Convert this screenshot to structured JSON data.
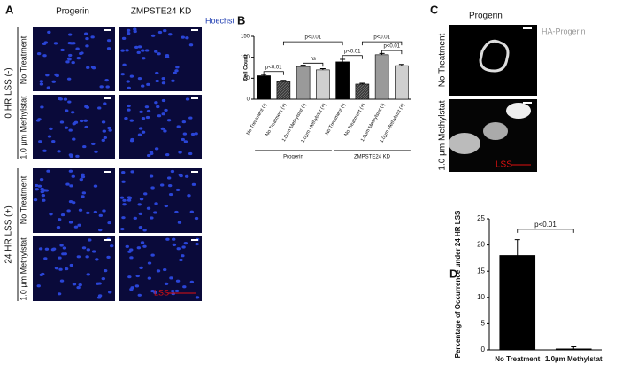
{
  "panels": {
    "A": {
      "label": "A",
      "columns": [
        "Progerin",
        "ZMPSTE24 KD"
      ],
      "stain": "Hoechst",
      "groups": [
        "0 HR LSS (-)",
        "24 HR LSS (+)"
      ],
      "rows": [
        "No Treatment",
        "1.0 µm Methylstat",
        "No Treatment",
        "1.0 µm Methylstat"
      ],
      "arrow": "LSS"
    },
    "C": {
      "label": "C",
      "column": "Progerin",
      "stain": "HA-Progerin",
      "rows": [
        "No Treatment",
        "1.0 µm Methylstat"
      ],
      "arrow": "LSS"
    }
  },
  "chart_data": [
    {
      "type": "bar",
      "label": "B",
      "ylabel": "Cell Count",
      "categories": [
        "No Treatment (-)",
        "No Treatment (+)",
        "1.0µm Methylstat (-)",
        "1.0µm Methylstat (+)",
        "No Treatment (-)",
        "No Treatment (+)",
        "1.0µm Methylstat (-)",
        "1.0µm Methylstat (+)"
      ],
      "values": [
        56,
        42,
        78,
        70,
        89,
        36,
        106,
        80
      ],
      "errors": [
        3,
        3,
        3,
        3,
        6,
        2,
        3,
        3
      ],
      "colors": [
        "#000000",
        "#3a3a3a",
        "#9a9a9a",
        "#cfcfcf",
        "#000000",
        "#3a3a3a",
        "#9a9a9a",
        "#cfcfcf"
      ],
      "groups": [
        "Progerin",
        "ZMPSTE24 KD"
      ],
      "annotations": [
        "p<0.01",
        "ns",
        "p<0.01",
        "p<0.01",
        "p<0.01",
        "p<0.01"
      ],
      "ylim": [
        0,
        150
      ],
      "yticks": [
        0,
        50,
        100,
        150
      ]
    },
    {
      "type": "bar",
      "label": "D",
      "ylabel": "Percentage of Occurrence under 24 HR LSS",
      "categories": [
        "No Treatment",
        "1.0µm Methylstat"
      ],
      "values": [
        18,
        0.2
      ],
      "errors": [
        3,
        0.4
      ],
      "colors": [
        "#000000",
        "#000000"
      ],
      "annotations": [
        "p<0.01"
      ],
      "ylim": [
        0,
        25
      ],
      "yticks": [
        0,
        5,
        10,
        15,
        20,
        25
      ]
    }
  ]
}
